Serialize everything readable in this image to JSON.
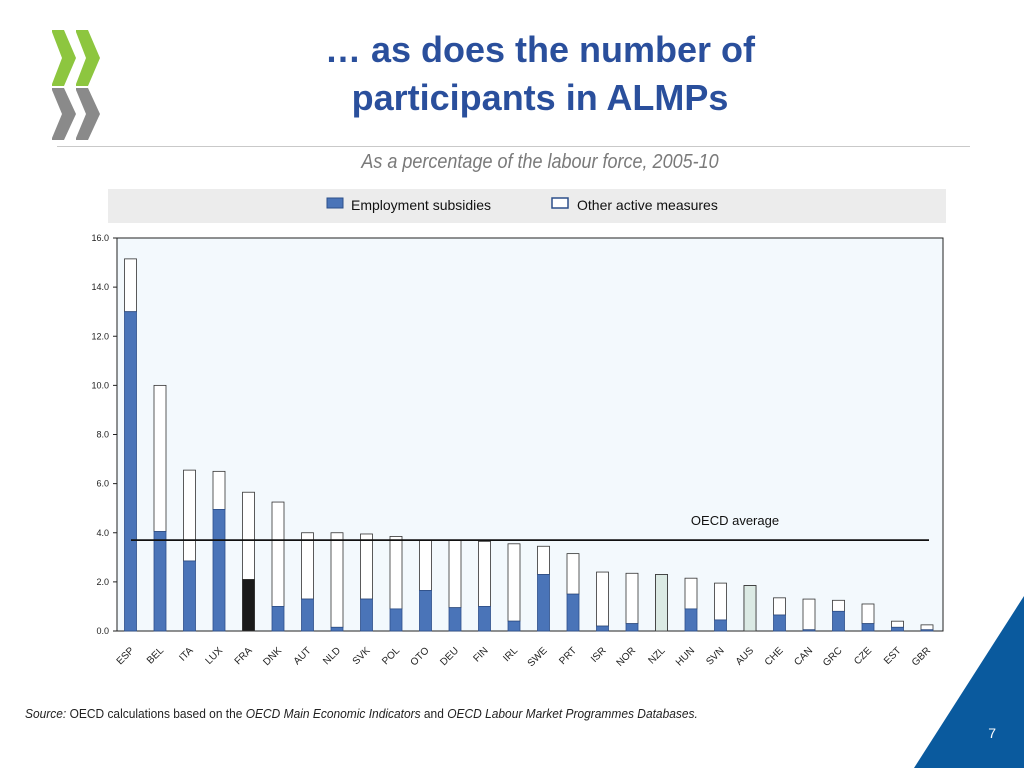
{
  "slide": {
    "title_line1": "… as does the number of",
    "title_line2": "participants in ALMPs",
    "subtitle": "As a percentage of the labour force, 2005-10",
    "source_label": "Source:",
    "source_text_1": "OECD calculations based on the",
    "source_em_1": "OECD Main Economic Indicators",
    "source_text_2": "and",
    "source_em_2": "OECD Labour Market Programmes Databases.",
    "page_number": "7"
  },
  "colors": {
    "title": "#2a4f9c",
    "employment_subsidies": "#4a74b8",
    "highlight_dark": "#1a1a1a",
    "highlight_light": "#dbeae4",
    "plot_background": "#f3f9fd",
    "legend_background": "#ececec",
    "corner_blue": "#0a5a9e"
  },
  "chart_data": {
    "type": "bar",
    "stacked": true,
    "categories": [
      "ESP",
      "BEL",
      "ITA",
      "LUX",
      "FRA",
      "DNK",
      "AUT",
      "NLD",
      "SVK",
      "POL",
      "OTO",
      "DEU",
      "FIN",
      "IRL",
      "SWE",
      "PRT",
      "ISR",
      "NOR",
      "NZL",
      "HUN",
      "SVN",
      "AUS",
      "CHE",
      "CAN",
      "GRC",
      "CZE",
      "EST",
      "GBR"
    ],
    "series": [
      {
        "name": "Employment subsidies",
        "values": [
          13.0,
          4.05,
          2.85,
          4.95,
          2.1,
          1.0,
          1.3,
          0.15,
          1.3,
          0.9,
          1.65,
          0.95,
          1.0,
          0.4,
          2.3,
          1.5,
          0.2,
          0.3,
          0,
          0.9,
          0.45,
          0,
          0.65,
          0.05,
          0.8,
          0.3,
          0.15,
          0.05
        ]
      },
      {
        "name": "Other active measures",
        "values": [
          2.15,
          5.95,
          3.7,
          1.55,
          3.55,
          4.25,
          2.7,
          3.85,
          2.65,
          2.95,
          2.05,
          2.75,
          2.65,
          3.15,
          1.15,
          1.65,
          2.2,
          2.05,
          2.3,
          1.25,
          1.5,
          1.85,
          0.7,
          1.25,
          0.45,
          0.8,
          0.25,
          0.2
        ]
      }
    ],
    "whole_bar_style": [
      null,
      null,
      null,
      null,
      "dark",
      null,
      null,
      null,
      null,
      null,
      null,
      null,
      null,
      null,
      null,
      null,
      null,
      null,
      "light",
      null,
      null,
      "light",
      null,
      null,
      null,
      null,
      null,
      null
    ],
    "yticks": [
      "0.0",
      "2.0",
      "4.0",
      "6.0",
      "8.0",
      "10.0",
      "12.0",
      "14.0",
      "16.0"
    ],
    "ylim": [
      0,
      16
    ],
    "reference_line": {
      "label": "OECD average",
      "value": 3.7
    },
    "legend_position": "top",
    "grid": false
  }
}
